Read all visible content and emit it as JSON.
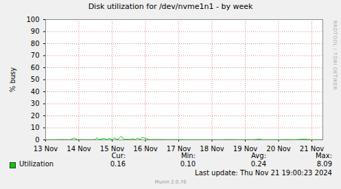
{
  "chart_data": {
    "type": "line",
    "title": "Disk utilization for /dev/nvme1n1 - by week",
    "y_label": "% busy",
    "side_text": "RRDTOOL / TOBI OETIKER",
    "x": [
      13.0,
      13.25,
      13.5,
      13.75,
      13.85,
      13.95,
      14.25,
      14.5,
      14.54,
      14.6,
      14.75,
      14.85,
      14.9,
      15.0,
      15.05,
      15.15,
      15.2,
      15.27,
      15.35,
      15.55,
      15.6,
      15.7,
      15.75,
      15.85,
      15.9,
      16.1,
      16.3,
      16.5,
      16.75,
      17.0,
      17.25,
      17.5,
      17.75,
      18.0,
      18.25,
      18.5,
      18.75,
      19.0,
      19.25,
      19.45,
      19.5,
      19.75,
      20.0,
      20.25,
      20.5,
      20.75,
      21.0,
      21.25,
      21.33
    ],
    "series": [
      {
        "name": "Utilization",
        "color": "#00cc00",
        "values": [
          0.2,
          0.2,
          0.3,
          0.2,
          1.5,
          0.3,
          0.2,
          0.3,
          1.8,
          0.3,
          1.2,
          0.3,
          1.3,
          0.3,
          1.6,
          0.4,
          1.1,
          3.0,
          0.5,
          0.4,
          1.0,
          0.3,
          1.4,
          0.3,
          2.2,
          0.3,
          0.3,
          0.3,
          0.2,
          0.3,
          0.2,
          0.2,
          0.2,
          0.2,
          0.2,
          0.3,
          0.2,
          0.2,
          0.2,
          0.6,
          0.2,
          0.2,
          0.2,
          0.3,
          0.2,
          0.6,
          0.2,
          0.2,
          0.16
        ],
        "stats": [
          {
            "name": "Cur:",
            "value": 0.16
          },
          {
            "name": "Min:",
            "value": 0.1
          },
          {
            "name": "Avg:",
            "value": 0.24
          },
          {
            "name": "Max:",
            "value": 8.09
          }
        ]
      }
    ],
    "xlim": [
      13,
      21.33
    ],
    "xticks": [
      {
        "value": 13,
        "label": "13 Nov"
      },
      {
        "value": 14,
        "label": "14 Nov"
      },
      {
        "value": 15,
        "label": "15 Nov"
      },
      {
        "value": 16,
        "label": "16 Nov"
      },
      {
        "value": 17,
        "label": "17 Nov"
      },
      {
        "value": 18,
        "label": "18 Nov"
      },
      {
        "value": 19,
        "label": "19 Nov"
      },
      {
        "value": 20,
        "label": "20 Nov"
      },
      {
        "value": 21,
        "label": "21 Nov"
      }
    ],
    "ylim": [
      0,
      100
    ],
    "yticks": [
      0,
      10,
      20,
      30,
      40,
      50,
      60,
      70,
      80,
      90,
      100
    ],
    "grid": true,
    "last_update": "Last update: Thu Nov 21 19:00:23 2024",
    "footer": "Munin 2.0.76"
  }
}
